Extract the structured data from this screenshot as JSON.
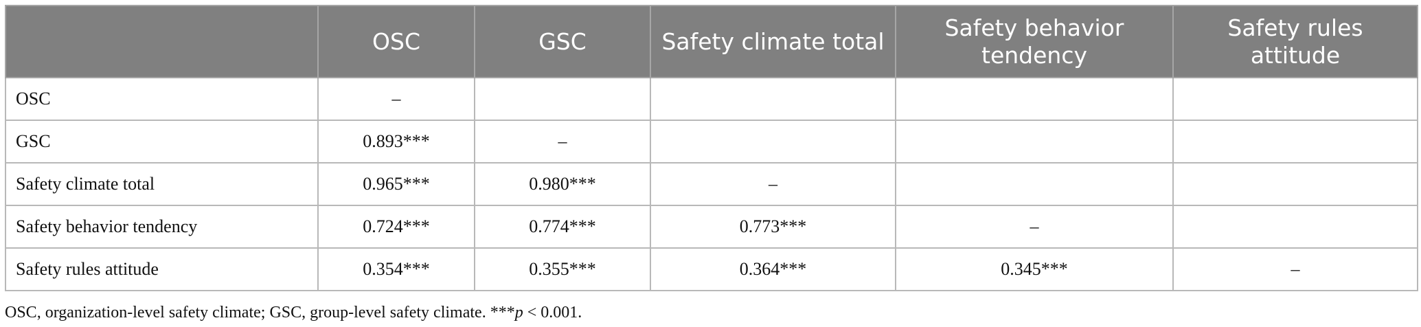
{
  "table": {
    "header": [
      "OSC",
      "GSC",
      "Safety climate total",
      "Safety behavior tendency",
      "Safety rules attitude"
    ],
    "rows": [
      [
        "OSC",
        "–"
      ],
      [
        "GSC",
        "0.893***",
        "–"
      ],
      [
        "Safety climate total",
        "0.965***",
        "0.980***",
        "–"
      ],
      [
        "Safety behavior tendency",
        "0.724***",
        "0.774***",
        "0.773***",
        "–"
      ],
      [
        "Safety rules attitude",
        "0.354***",
        "0.355***",
        "0.364***",
        "0.345***",
        "–"
      ]
    ]
  },
  "footnote": [
    "OSC, organization-level safety climate; GSC, group-level safety climate. ***",
    "p",
    " < 0.001."
  ]
}
